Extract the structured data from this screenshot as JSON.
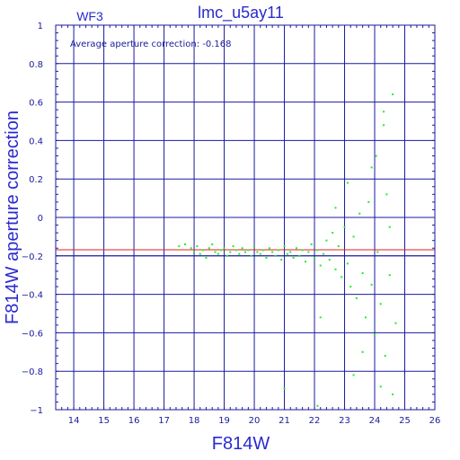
{
  "chart_data": {
    "type": "scatter",
    "title": "lmc_u5ay11",
    "panel_label": "WF3",
    "annotation": "Average aperture correction: -0.168",
    "xlabel": "F814W",
    "ylabel": "F814W aperture correction",
    "xlim": [
      13.4,
      26
    ],
    "ylim": [
      -1,
      1
    ],
    "x_ticks": [
      14,
      15,
      16,
      17,
      18,
      19,
      20,
      21,
      22,
      23,
      24,
      25,
      26
    ],
    "y_ticks": [
      -1,
      -0.8,
      -0.6,
      -0.4,
      -0.2,
      0,
      0.2,
      0.4,
      0.6,
      0.8,
      1
    ],
    "y_tick_labels": [
      "−1",
      "−0.8",
      "−0.6",
      "−0.4",
      "−0.2",
      "0",
      "0.2",
      "0.4",
      "0.6",
      "0.8",
      "1"
    ],
    "grid": true,
    "reference_lines": [
      {
        "y": -0.168,
        "color": "#e02020"
      },
      {
        "y": -0.2,
        "color": "#1a1aa0"
      }
    ],
    "colors": {
      "points": "#22ee22",
      "axes": "#1a1aa0",
      "text": "#2a2ad0",
      "average_line": "#e02020"
    },
    "series": [
      {
        "points": [
          [
            17.5,
            -0.15
          ],
          [
            17.7,
            -0.14
          ],
          [
            17.9,
            -0.16
          ],
          [
            18.0,
            -0.18
          ],
          [
            18.1,
            -0.15
          ],
          [
            18.2,
            -0.19
          ],
          [
            18.3,
            -0.17
          ],
          [
            18.4,
            -0.21
          ],
          [
            18.5,
            -0.16
          ],
          [
            18.6,
            -0.14
          ],
          [
            18.7,
            -0.18
          ],
          [
            18.8,
            -0.19
          ],
          [
            18.9,
            -0.17
          ],
          [
            19.0,
            -0.16
          ],
          [
            19.1,
            -0.2
          ],
          [
            19.2,
            -0.18
          ],
          [
            19.3,
            -0.15
          ],
          [
            19.4,
            -0.17
          ],
          [
            19.5,
            -0.19
          ],
          [
            19.6,
            -0.16
          ],
          [
            19.7,
            -0.18
          ],
          [
            19.8,
            -0.17
          ],
          [
            19.9,
            -0.2
          ],
          [
            20.0,
            -0.15
          ],
          [
            20.1,
            -0.18
          ],
          [
            20.2,
            -0.19
          ],
          [
            20.3,
            -0.17
          ],
          [
            20.4,
            -0.21
          ],
          [
            20.5,
            -0.16
          ],
          [
            20.6,
            -0.18
          ],
          [
            20.7,
            -0.2
          ],
          [
            20.8,
            -0.17
          ],
          [
            20.9,
            -0.22
          ],
          [
            21.0,
            -0.15
          ],
          [
            21.1,
            -0.19
          ],
          [
            21.2,
            -0.18
          ],
          [
            21.3,
            -0.21
          ],
          [
            21.4,
            -0.16
          ],
          [
            21.5,
            -0.2
          ],
          [
            21.6,
            -0.17
          ],
          [
            21.7,
            -0.23
          ],
          [
            21.8,
            -0.18
          ],
          [
            21.9,
            -0.14
          ],
          [
            22.0,
            -0.21
          ],
          [
            22.1,
            -0.17
          ],
          [
            22.2,
            -0.25
          ],
          [
            22.3,
            -0.19
          ],
          [
            22.4,
            -0.12
          ],
          [
            22.5,
            -0.22
          ],
          [
            22.6,
            -0.08
          ],
          [
            22.7,
            -0.27
          ],
          [
            22.8,
            -0.15
          ],
          [
            22.9,
            -0.31
          ],
          [
            23.0,
            -0.05
          ],
          [
            23.1,
            -0.24
          ],
          [
            23.2,
            -0.36
          ],
          [
            23.3,
            -0.1
          ],
          [
            23.4,
            -0.42
          ],
          [
            23.5,
            0.02
          ],
          [
            23.6,
            -0.29
          ],
          [
            23.7,
            -0.52
          ],
          [
            23.8,
            0.08
          ],
          [
            23.9,
            -0.35
          ],
          [
            24.0,
            -0.61
          ],
          [
            24.05,
            0.32
          ],
          [
            24.1,
            -0.18
          ],
          [
            24.2,
            -0.45
          ],
          [
            24.3,
            0.55
          ],
          [
            24.35,
            -0.72
          ],
          [
            24.4,
            0.12
          ],
          [
            24.5,
            -0.3
          ],
          [
            24.6,
            0.64
          ],
          [
            24.7,
            -0.55
          ],
          [
            24.2,
            -0.88
          ],
          [
            23.6,
            -0.7
          ],
          [
            22.2,
            -0.52
          ],
          [
            21.0,
            -0.89
          ],
          [
            22.1,
            -0.98
          ],
          [
            23.1,
            0.18
          ],
          [
            23.9,
            0.26
          ],
          [
            24.3,
            0.48
          ],
          [
            24.5,
            -0.05
          ],
          [
            22.7,
            0.05
          ],
          [
            23.3,
            -0.82
          ],
          [
            24.6,
            -0.92
          ]
        ]
      }
    ]
  }
}
